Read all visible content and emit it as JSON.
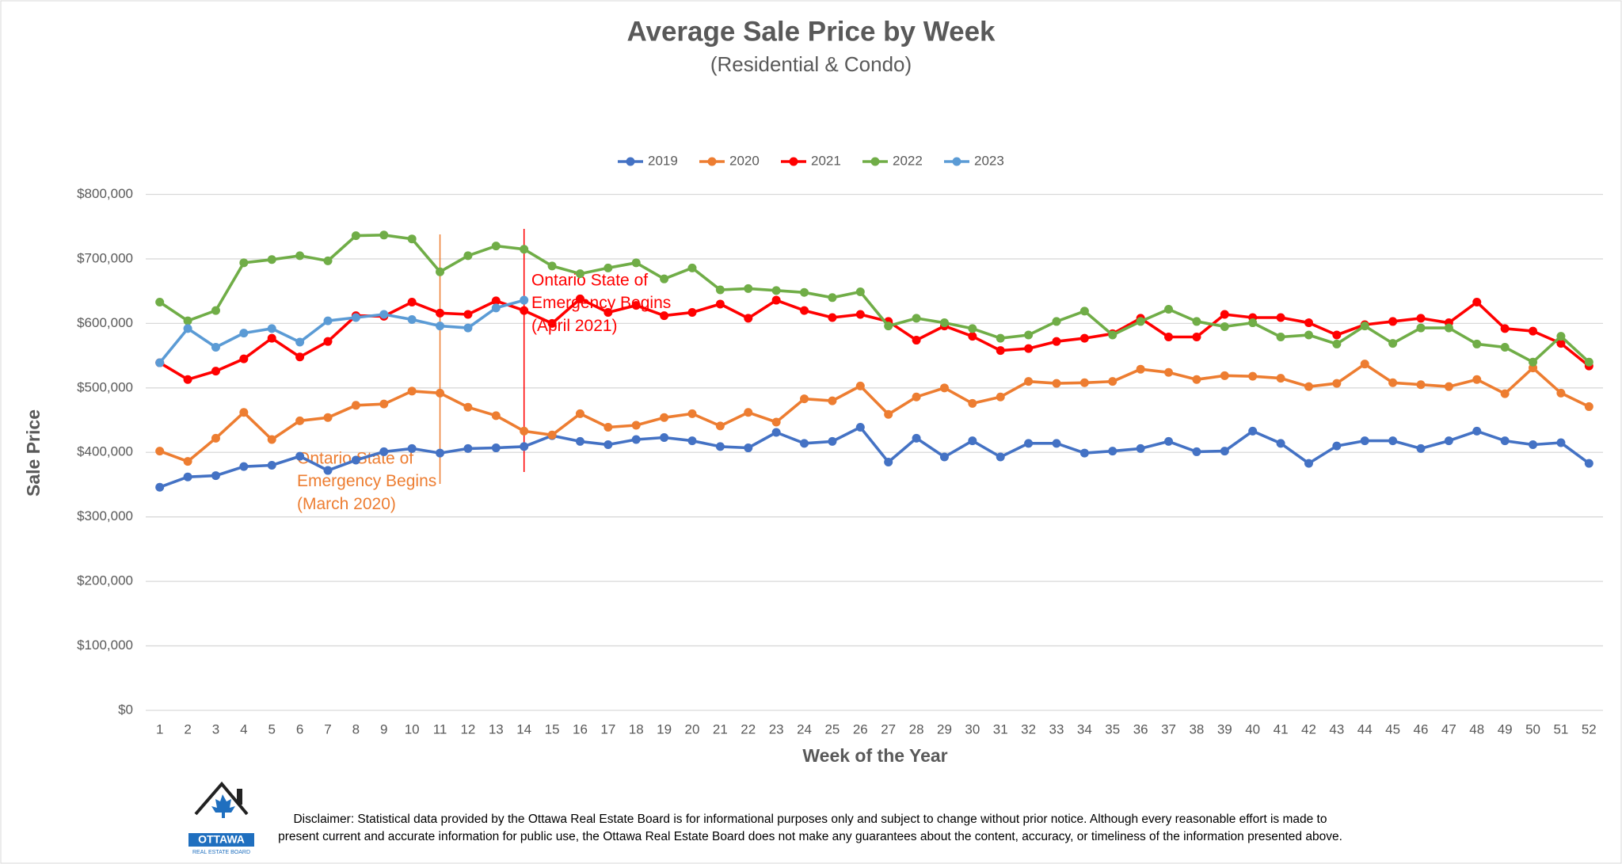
{
  "chart_data": {
    "type": "line",
    "title": "Average Sale Price by Week",
    "subtitle": "(Residential & Condo)",
    "x_label": "Week of the Year",
    "y_label": "Sale Price",
    "categories": [
      1,
      2,
      3,
      4,
      5,
      6,
      7,
      8,
      9,
      10,
      11,
      12,
      13,
      14,
      15,
      16,
      17,
      18,
      19,
      20,
      21,
      22,
      23,
      24,
      25,
      26,
      27,
      28,
      29,
      30,
      31,
      32,
      33,
      34,
      35,
      36,
      37,
      38,
      39,
      40,
      41,
      42,
      43,
      44,
      45,
      46,
      47,
      48,
      49,
      50,
      51,
      52
    ],
    "ylim": [
      0,
      800000
    ],
    "yticks": [
      {
        "value": 0,
        "label": "$0"
      },
      {
        "value": 100000,
        "label": "$100,000"
      },
      {
        "value": 200000,
        "label": "$200,000"
      },
      {
        "value": 300000,
        "label": "$300,000"
      },
      {
        "value": 400000,
        "label": "$400,000"
      },
      {
        "value": 500000,
        "label": "$500,000"
      },
      {
        "value": 600000,
        "label": "$600,000"
      },
      {
        "value": 700000,
        "label": "$700,000"
      },
      {
        "value": 800000,
        "label": "$800,000"
      }
    ],
    "grid": true,
    "legend": "top",
    "series": [
      {
        "name": "2019",
        "color": "#4472c4",
        "values": [
          346000,
          362000,
          364000,
          378000,
          380000,
          394000,
          372000,
          388000,
          401000,
          406000,
          399000,
          406000,
          407000,
          409000,
          426000,
          417000,
          412000,
          420000,
          423000,
          418000,
          409000,
          407000,
          431000,
          414000,
          417000,
          439000,
          385000,
          422000,
          393000,
          418000,
          393000,
          414000,
          414000,
          399000,
          402000,
          406000,
          417000,
          401000,
          402000,
          433000,
          414000,
          383000,
          410000,
          418000,
          418000,
          406000,
          418000,
          433000,
          418000,
          412000,
          415000,
          383000
        ]
      },
      {
        "name": "2020",
        "color": "#ed7d31",
        "values": [
          402000,
          386000,
          422000,
          462000,
          420000,
          449000,
          454000,
          473000,
          475000,
          495000,
          492000,
          470000,
          457000,
          433000,
          427000,
          460000,
          439000,
          442000,
          454000,
          460000,
          441000,
          462000,
          447000,
          483000,
          480000,
          503000,
          459000,
          486000,
          500000,
          476000,
          486000,
          510000,
          507000,
          508000,
          510000,
          529000,
          524000,
          513000,
          519000,
          518000,
          515000,
          502000,
          507000,
          537000,
          508000,
          505000,
          502000,
          513000,
          491000,
          531000,
          492000,
          471000
        ]
      },
      {
        "name": "2021",
        "color": "#ff0000",
        "values": [
          539000,
          513000,
          526000,
          545000,
          577000,
          548000,
          572000,
          612000,
          611000,
          633000,
          616000,
          614000,
          635000,
          620000,
          600000,
          638000,
          617000,
          628000,
          612000,
          617000,
          630000,
          608000,
          636000,
          620000,
          609000,
          614000,
          603000,
          574000,
          596000,
          580000,
          558000,
          561000,
          572000,
          577000,
          584000,
          608000,
          579000,
          579000,
          614000,
          609000,
          609000,
          601000,
          582000,
          598000,
          603000,
          608000,
          601000,
          633000,
          592000,
          588000,
          569000,
          534000
        ]
      },
      {
        "name": "2022",
        "color": "#70ad47",
        "values": [
          633000,
          604000,
          620000,
          694000,
          699000,
          705000,
          697000,
          736000,
          737000,
          731000,
          680000,
          705000,
          720000,
          715000,
          689000,
          677000,
          686000,
          694000,
          669000,
          686000,
          652000,
          654000,
          651000,
          648000,
          640000,
          649000,
          596000,
          608000,
          601000,
          592000,
          577000,
          582000,
          603000,
          619000,
          582000,
          603000,
          622000,
          603000,
          595000,
          601000,
          579000,
          582000,
          568000,
          596000,
          569000,
          593000,
          593000,
          568000,
          563000,
          540000,
          580000,
          540000
        ]
      },
      {
        "name": "2023",
        "color": "#5b9bd5",
        "values": [
          539000,
          592000,
          563000,
          585000,
          592000,
          571000,
          604000,
          609000,
          614000,
          606000,
          596000,
          593000,
          624000,
          636000,
          null,
          null,
          null,
          null,
          null,
          null,
          null,
          null,
          null,
          null,
          null,
          null,
          null,
          null,
          null,
          null,
          null,
          null,
          null,
          null,
          null,
          null,
          null,
          null,
          null,
          null,
          null,
          null,
          null,
          null,
          null,
          null,
          null,
          null,
          null,
          null,
          null,
          null
        ]
      }
    ],
    "annotations": [
      {
        "x": 11,
        "color": "#ed7d31",
        "text": [
          "Ontario State of",
          "Emergency Begins",
          "(March 2020)"
        ]
      },
      {
        "x": 14,
        "color": "#ff0000",
        "text": [
          "Ontario State of",
          "Emergency Begins",
          "(April 2021)"
        ]
      }
    ]
  },
  "footer": {
    "logo": {
      "name": "OTTAWA",
      "tagline": "REAL ESTATE BOARD"
    },
    "disclaimer": [
      "Disclaimer: Statistical data provided by the Ottawa Real Estate Board is for informational purposes only and subject to change without prior notice. Although every reasonable effort is made to",
      "present current and accurate information for public use, the Ottawa Real Estate Board does not make any guarantees about the content, accuracy, or timeliness of the information presented above."
    ]
  }
}
